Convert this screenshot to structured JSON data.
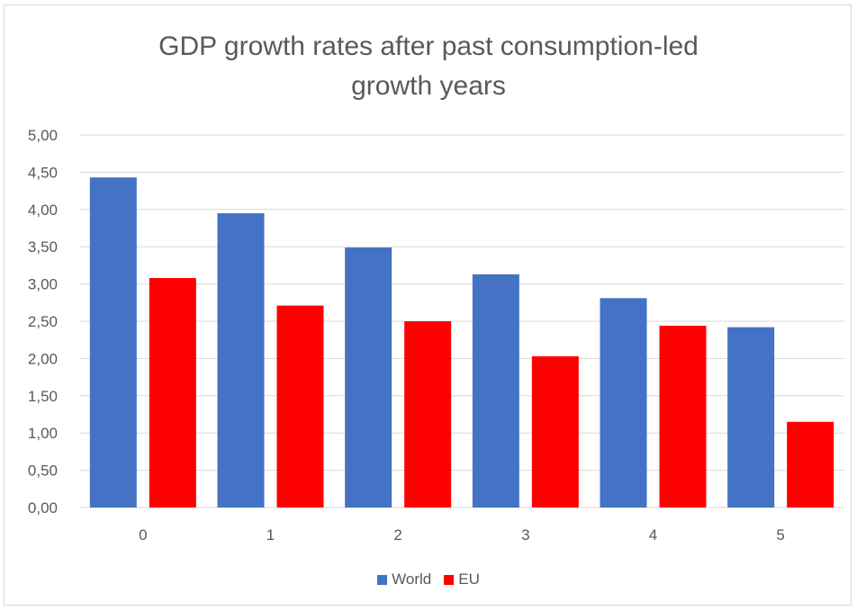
{
  "chart_data": {
    "type": "bar",
    "title": "GDP growth rates after past consumption-led growth years",
    "title_lines": [
      "GDP growth rates after past consumption-led",
      "growth years"
    ],
    "categories": [
      "0",
      "1",
      "2",
      "3",
      "4",
      "5"
    ],
    "series": [
      {
        "name": "World",
        "color": "#4472c4",
        "values": [
          4.43,
          3.95,
          3.49,
          3.13,
          2.81,
          2.42
        ]
      },
      {
        "name": "EU",
        "color": "#ff0000",
        "values": [
          3.08,
          2.71,
          2.5,
          2.03,
          2.44,
          1.15
        ]
      }
    ],
    "ylim": [
      0,
      5
    ],
    "yticks": [
      "0,00",
      "0,50",
      "1,00",
      "1,50",
      "2,00",
      "2,50",
      "3,00",
      "3,50",
      "4,00",
      "4,50",
      "5,00"
    ],
    "grid": true,
    "legend_position": "bottom",
    "gridline_color": "#d9d9d9"
  }
}
